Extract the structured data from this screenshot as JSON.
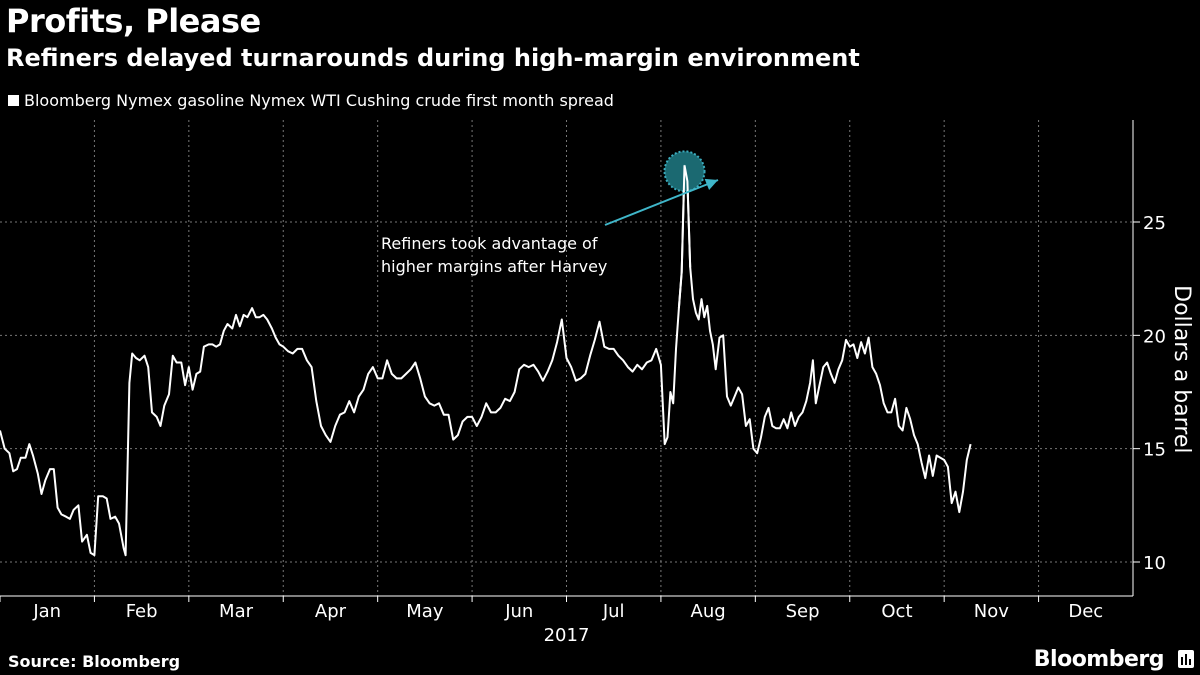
{
  "header": {
    "title": "Profits, Please",
    "subtitle": "Refiners delayed turnarounds during high-margin environment"
  },
  "legend": {
    "label": "Bloomberg Nymex gasoline Nymex WTI Cushing crude first month spread"
  },
  "footer": {
    "source": "Source: Bloomberg",
    "brand": "Bloomberg"
  },
  "colors": {
    "background": "#000000",
    "line": "#ffffff",
    "grid": "#777777",
    "annotation": "#3fb6c9",
    "marker_fill": "#1d6f78"
  },
  "chart_data": {
    "type": "line",
    "title": "Profits, Please",
    "subtitle": "Refiners delayed turnarounds during high-margin environment",
    "xlabel": "2017",
    "ylabel": "Dollars a barrel",
    "ylim": [
      8.5,
      29.5
    ],
    "y_ticks": [
      10,
      15,
      20,
      25
    ],
    "y_axis_side": "right",
    "x_ticks": [
      "Jan",
      "Feb",
      "Mar",
      "Apr",
      "May",
      "Jun",
      "Jul",
      "Aug",
      "Sep",
      "Oct",
      "Nov",
      "Dec"
    ],
    "x_year_label": "2017",
    "grid": true,
    "legend_position": "top-left",
    "annotation": {
      "text_lines": [
        "Refiners took advantage of",
        "higher margins after Harvey"
      ],
      "target_month": 8.25,
      "target_value": 27.5
    },
    "series": [
      {
        "name": "Bloomberg Nymex gasoline Nymex WTI Cushing crude first month spread",
        "x_unit": "month (1 = Jan 1, 2017)",
        "points": [
          [
            1.0,
            15.8
          ],
          [
            1.05,
            15.0
          ],
          [
            1.1,
            14.8
          ],
          [
            1.14,
            14.0
          ],
          [
            1.18,
            14.1
          ],
          [
            1.22,
            14.6
          ],
          [
            1.27,
            14.6
          ],
          [
            1.31,
            15.2
          ],
          [
            1.35,
            14.7
          ],
          [
            1.4,
            13.9
          ],
          [
            1.44,
            13.0
          ],
          [
            1.48,
            13.6
          ],
          [
            1.53,
            14.1
          ],
          [
            1.57,
            14.1
          ],
          [
            1.61,
            12.4
          ],
          [
            1.65,
            12.1
          ],
          [
            1.7,
            12.0
          ],
          [
            1.74,
            11.9
          ],
          [
            1.78,
            12.3
          ],
          [
            1.83,
            12.5
          ],
          [
            1.87,
            10.9
          ],
          [
            1.92,
            11.2
          ],
          [
            1.96,
            10.4
          ],
          [
            2.0,
            10.3
          ],
          [
            2.04,
            12.9
          ],
          [
            2.09,
            12.9
          ],
          [
            2.13,
            12.8
          ],
          [
            2.17,
            11.9
          ],
          [
            2.22,
            12.0
          ],
          [
            2.26,
            11.7
          ],
          [
            2.31,
            10.6
          ],
          [
            2.33,
            10.3
          ],
          [
            2.37,
            17.9
          ],
          [
            2.4,
            19.2
          ],
          [
            2.44,
            19.0
          ],
          [
            2.48,
            18.9
          ],
          [
            2.53,
            19.1
          ],
          [
            2.57,
            18.6
          ],
          [
            2.61,
            16.6
          ],
          [
            2.66,
            16.4
          ],
          [
            2.7,
            16.0
          ],
          [
            2.74,
            16.9
          ],
          [
            2.79,
            17.4
          ],
          [
            2.83,
            19.1
          ],
          [
            2.87,
            18.8
          ],
          [
            2.92,
            18.8
          ],
          [
            2.96,
            17.8
          ],
          [
            3.0,
            18.6
          ],
          [
            3.04,
            17.6
          ],
          [
            3.08,
            18.3
          ],
          [
            3.12,
            18.4
          ],
          [
            3.16,
            19.5
          ],
          [
            3.21,
            19.6
          ],
          [
            3.25,
            19.6
          ],
          [
            3.29,
            19.5
          ],
          [
            3.33,
            19.6
          ],
          [
            3.37,
            20.2
          ],
          [
            3.41,
            20.5
          ],
          [
            3.46,
            20.3
          ],
          [
            3.5,
            20.9
          ],
          [
            3.54,
            20.4
          ],
          [
            3.58,
            20.9
          ],
          [
            3.62,
            20.8
          ],
          [
            3.67,
            21.2
          ],
          [
            3.71,
            20.8
          ],
          [
            3.75,
            20.8
          ],
          [
            3.79,
            20.9
          ],
          [
            3.83,
            20.7
          ],
          [
            3.88,
            20.3
          ],
          [
            3.92,
            19.9
          ],
          [
            3.96,
            19.6
          ],
          [
            4.0,
            19.5
          ],
          [
            4.05,
            19.3
          ],
          [
            4.1,
            19.2
          ],
          [
            4.15,
            19.4
          ],
          [
            4.2,
            19.4
          ],
          [
            4.25,
            18.9
          ],
          [
            4.3,
            18.6
          ],
          [
            4.35,
            17.1
          ],
          [
            4.4,
            16.0
          ],
          [
            4.45,
            15.6
          ],
          [
            4.5,
            15.3
          ],
          [
            4.55,
            16.0
          ],
          [
            4.6,
            16.5
          ],
          [
            4.65,
            16.6
          ],
          [
            4.7,
            17.1
          ],
          [
            4.75,
            16.6
          ],
          [
            4.8,
            17.3
          ],
          [
            4.85,
            17.6
          ],
          [
            4.9,
            18.3
          ],
          [
            4.95,
            18.6
          ],
          [
            5.0,
            18.1
          ],
          [
            5.05,
            18.1
          ],
          [
            5.1,
            18.9
          ],
          [
            5.15,
            18.3
          ],
          [
            5.2,
            18.1
          ],
          [
            5.25,
            18.1
          ],
          [
            5.3,
            18.3
          ],
          [
            5.35,
            18.5
          ],
          [
            5.4,
            18.8
          ],
          [
            5.45,
            18.1
          ],
          [
            5.5,
            17.3
          ],
          [
            5.55,
            17.0
          ],
          [
            5.6,
            16.9
          ],
          [
            5.65,
            17.0
          ],
          [
            5.7,
            16.5
          ],
          [
            5.75,
            16.5
          ],
          [
            5.8,
            15.4
          ],
          [
            5.85,
            15.6
          ],
          [
            5.9,
            16.2
          ],
          [
            5.95,
            16.4
          ],
          [
            6.0,
            16.4
          ],
          [
            6.05,
            16.0
          ],
          [
            6.1,
            16.4
          ],
          [
            6.15,
            17.0
          ],
          [
            6.2,
            16.6
          ],
          [
            6.25,
            16.6
          ],
          [
            6.3,
            16.8
          ],
          [
            6.35,
            17.2
          ],
          [
            6.4,
            17.1
          ],
          [
            6.45,
            17.5
          ],
          [
            6.5,
            18.5
          ],
          [
            6.55,
            18.7
          ],
          [
            6.6,
            18.6
          ],
          [
            6.65,
            18.7
          ],
          [
            6.7,
            18.4
          ],
          [
            6.75,
            18.0
          ],
          [
            6.8,
            18.4
          ],
          [
            6.85,
            18.9
          ],
          [
            6.9,
            19.7
          ],
          [
            6.95,
            20.7
          ],
          [
            7.0,
            19.0
          ],
          [
            7.05,
            18.6
          ],
          [
            7.1,
            18.0
          ],
          [
            7.15,
            18.1
          ],
          [
            7.2,
            18.3
          ],
          [
            7.25,
            19.1
          ],
          [
            7.3,
            19.8
          ],
          [
            7.35,
            20.6
          ],
          [
            7.4,
            19.5
          ],
          [
            7.45,
            19.4
          ],
          [
            7.5,
            19.4
          ],
          [
            7.55,
            19.1
          ],
          [
            7.6,
            18.9
          ],
          [
            7.65,
            18.6
          ],
          [
            7.7,
            18.4
          ],
          [
            7.75,
            18.7
          ],
          [
            7.8,
            18.5
          ],
          [
            7.85,
            18.8
          ],
          [
            7.9,
            18.9
          ],
          [
            7.95,
            19.4
          ],
          [
            8.0,
            18.7
          ],
          [
            8.04,
            15.2
          ],
          [
            8.07,
            15.5
          ],
          [
            8.1,
            17.5
          ],
          [
            8.13,
            17.0
          ],
          [
            8.16,
            19.4
          ],
          [
            8.19,
            21.2
          ],
          [
            8.22,
            22.8
          ],
          [
            8.25,
            27.5
          ],
          [
            8.28,
            26.8
          ],
          [
            8.31,
            23.0
          ],
          [
            8.34,
            21.6
          ],
          [
            8.37,
            21.0
          ],
          [
            8.4,
            20.7
          ],
          [
            8.43,
            21.6
          ],
          [
            8.46,
            20.8
          ],
          [
            8.49,
            21.3
          ],
          [
            8.52,
            20.2
          ],
          [
            8.55,
            19.6
          ],
          [
            8.58,
            18.5
          ],
          [
            8.62,
            19.9
          ],
          [
            8.66,
            20.0
          ],
          [
            8.7,
            17.3
          ],
          [
            8.74,
            16.9
          ],
          [
            8.78,
            17.3
          ],
          [
            8.82,
            17.7
          ],
          [
            8.86,
            17.4
          ],
          [
            8.9,
            16.0
          ],
          [
            8.94,
            16.3
          ],
          [
            8.98,
            15.0
          ],
          [
            9.02,
            14.8
          ],
          [
            9.06,
            15.5
          ],
          [
            9.1,
            16.4
          ],
          [
            9.14,
            16.8
          ],
          [
            9.18,
            16.0
          ],
          [
            9.22,
            15.9
          ],
          [
            9.26,
            15.9
          ],
          [
            9.3,
            16.3
          ],
          [
            9.34,
            15.9
          ],
          [
            9.38,
            16.6
          ],
          [
            9.42,
            16.0
          ],
          [
            9.46,
            16.4
          ],
          [
            9.5,
            16.6
          ],
          [
            9.54,
            17.1
          ],
          [
            9.58,
            17.9
          ],
          [
            9.61,
            18.9
          ],
          [
            9.64,
            17.0
          ],
          [
            9.68,
            17.8
          ],
          [
            9.72,
            18.6
          ],
          [
            9.76,
            18.8
          ],
          [
            9.8,
            18.3
          ],
          [
            9.84,
            17.9
          ],
          [
            9.88,
            18.5
          ],
          [
            9.92,
            18.9
          ],
          [
            9.96,
            19.8
          ],
          [
            10.0,
            19.5
          ],
          [
            10.04,
            19.6
          ],
          [
            10.08,
            19.0
          ],
          [
            10.12,
            19.7
          ],
          [
            10.16,
            19.2
          ],
          [
            10.2,
            19.9
          ],
          [
            10.24,
            18.6
          ],
          [
            10.28,
            18.3
          ],
          [
            10.32,
            17.8
          ],
          [
            10.36,
            17.0
          ],
          [
            10.4,
            16.6
          ],
          [
            10.44,
            16.6
          ],
          [
            10.48,
            17.2
          ],
          [
            10.52,
            16.0
          ],
          [
            10.56,
            15.8
          ],
          [
            10.6,
            16.8
          ],
          [
            10.64,
            16.3
          ],
          [
            10.68,
            15.6
          ],
          [
            10.72,
            15.2
          ],
          [
            10.76,
            14.4
          ],
          [
            10.8,
            13.7
          ],
          [
            10.84,
            14.7
          ],
          [
            10.88,
            13.8
          ],
          [
            10.92,
            14.7
          ],
          [
            10.96,
            14.6
          ],
          [
            11.0,
            14.5
          ],
          [
            11.04,
            14.2
          ],
          [
            11.08,
            12.6
          ],
          [
            11.12,
            13.1
          ],
          [
            11.16,
            12.2
          ],
          [
            11.2,
            13.1
          ],
          [
            11.24,
            14.5
          ],
          [
            11.28,
            15.2
          ]
        ]
      }
    ]
  }
}
